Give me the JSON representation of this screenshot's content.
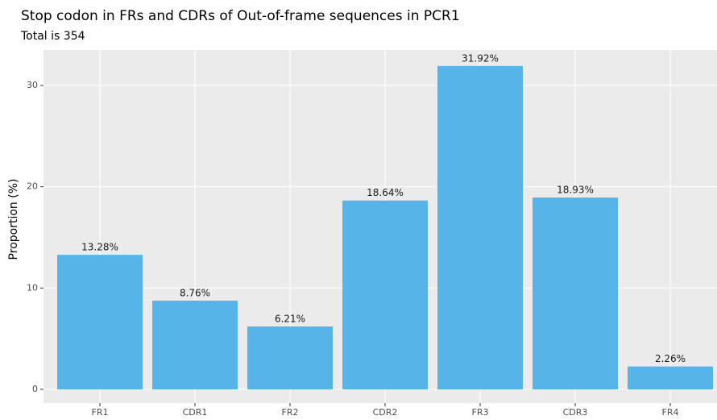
{
  "chart_data": {
    "type": "bar",
    "title": "Stop codon in FRs and CDRs of Out-of-frame sequences in PCR1",
    "subtitle": "Total is 354",
    "y_label": "Proportion (%)",
    "categories": [
      "FR1",
      "CDR1",
      "FR2",
      "CDR2",
      "FR3",
      "CDR3",
      "FR4"
    ],
    "values": [
      13.28,
      8.76,
      6.21,
      18.64,
      31.92,
      18.93,
      2.26
    ],
    "value_labels": [
      "13.28%",
      "8.76%",
      "6.21%",
      "18.64%",
      "31.92%",
      "18.93%",
      "2.26%"
    ],
    "color": "#56B4E9",
    "ylim": [
      0,
      33.5
    ],
    "yticks": [
      0,
      10,
      20,
      30
    ],
    "grid": true
  }
}
